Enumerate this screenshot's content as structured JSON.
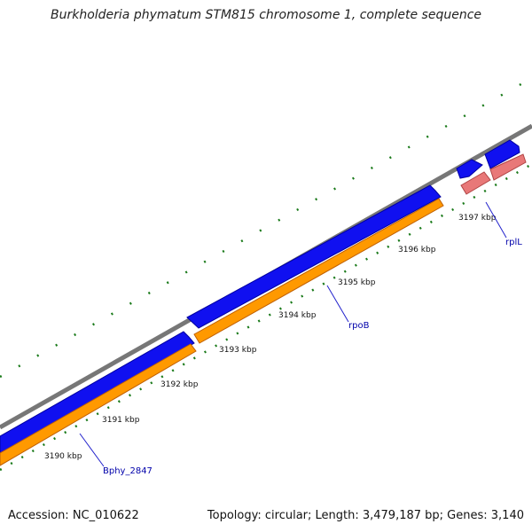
{
  "title": "Burkholderia phymatum STM815 chromosome 1, complete sequence",
  "footer": {
    "accession": "Accession: NC_010622",
    "summary": "Topology: circular; Length: 3,479,187 bp; Genes: 3,140"
  },
  "colors": {
    "backbone": "#888888",
    "gene_forward": "#1010f0",
    "gene_reverse": "#0000c0",
    "cds": "#ff9900",
    "rna": "#e87878",
    "ticks": "#1a7a1a",
    "label_line": "#2222cc"
  },
  "scale_ticks": [
    "3190 kbp",
    "3191 kbp",
    "3192 kbp",
    "3193 kbp",
    "3194 kbp",
    "3195 kbp",
    "3196 kbp",
    "3197 kbp"
  ],
  "genes": [
    {
      "label": "Bphy_2847"
    },
    {
      "label": "rpoB"
    },
    {
      "label": "rplL"
    }
  ]
}
